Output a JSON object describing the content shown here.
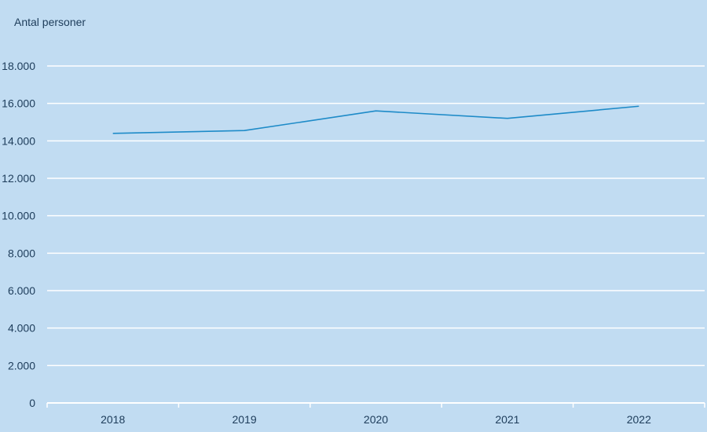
{
  "chart_data": {
    "type": "line",
    "title": "",
    "xlabel": "",
    "ylabel": "Antal personer",
    "categories": [
      "2018",
      "2019",
      "2020",
      "2021",
      "2022"
    ],
    "series": [
      {
        "values": [
          14400,
          14550,
          15600,
          15200,
          15850
        ],
        "color": "#1e8bc8"
      }
    ],
    "ylim": [
      0,
      18000
    ],
    "yticks": [
      0,
      2000,
      4000,
      6000,
      8000,
      10000,
      12000,
      14000,
      16000,
      18000
    ],
    "ytick_labels": [
      "0",
      "2.000",
      "4.000",
      "6.000",
      "8.000",
      "10.000",
      "12.000",
      "14.000",
      "16.000",
      "18.000"
    ],
    "grid": true,
    "legend": "none",
    "background_color": "#c1dcf2",
    "grid_color": "#ffffff"
  }
}
